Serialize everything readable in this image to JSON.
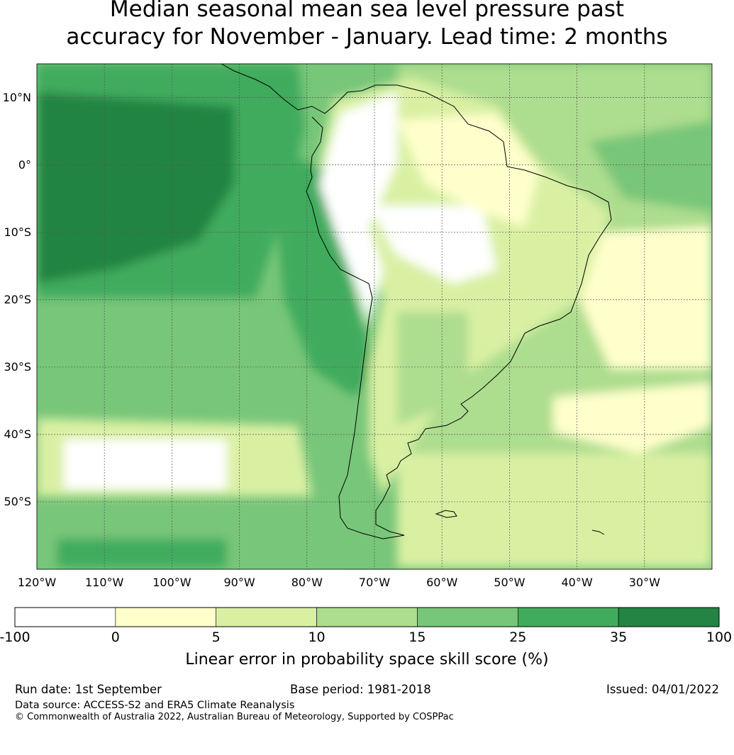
{
  "title": {
    "line1": "Median seasonal mean sea level pressure past",
    "line2": "accuracy for November - January. Lead time: 2 months"
  },
  "map": {
    "lat_labels": [
      "10°N",
      "0°",
      "10°S",
      "20°S",
      "30°S",
      "40°S",
      "50°S"
    ],
    "lat_values": [
      10,
      0,
      -10,
      -20,
      -30,
      -40,
      -50
    ],
    "lon_labels": [
      "120°W",
      "110°W",
      "100°W",
      "90°W",
      "80°W",
      "70°W",
      "60°W",
      "50°W",
      "40°W",
      "30°W"
    ],
    "lon_values": [
      -120,
      -110,
      -100,
      -90,
      -80,
      -70,
      -60,
      -50,
      -40,
      -30
    ],
    "extent": {
      "lon_min": -120,
      "lon_max": -20,
      "lat_min": -60,
      "lat_max": 15
    }
  },
  "colorbar": {
    "ticks": [
      "-100",
      "0",
      "5",
      "10",
      "15",
      "25",
      "35",
      "100"
    ],
    "colors": [
      "#ffffff",
      "#ffffcc",
      "#d9f0a3",
      "#addd8e",
      "#78c679",
      "#41ab5d",
      "#238443"
    ],
    "caption": "Linear error in probability space skill score (%)"
  },
  "footer": {
    "run_date": "Run date: 1st September",
    "base_period": "Base period: 1981-2018",
    "issued": "Issued: 04/01/2022",
    "data_source": "Data source: ACCESS-S2 and ERA5 Climate Reanalysis",
    "copyright": "© Commonwealth of Australia 2022, Australian Bureau of Meteorology, Supported by COSPPac"
  }
}
